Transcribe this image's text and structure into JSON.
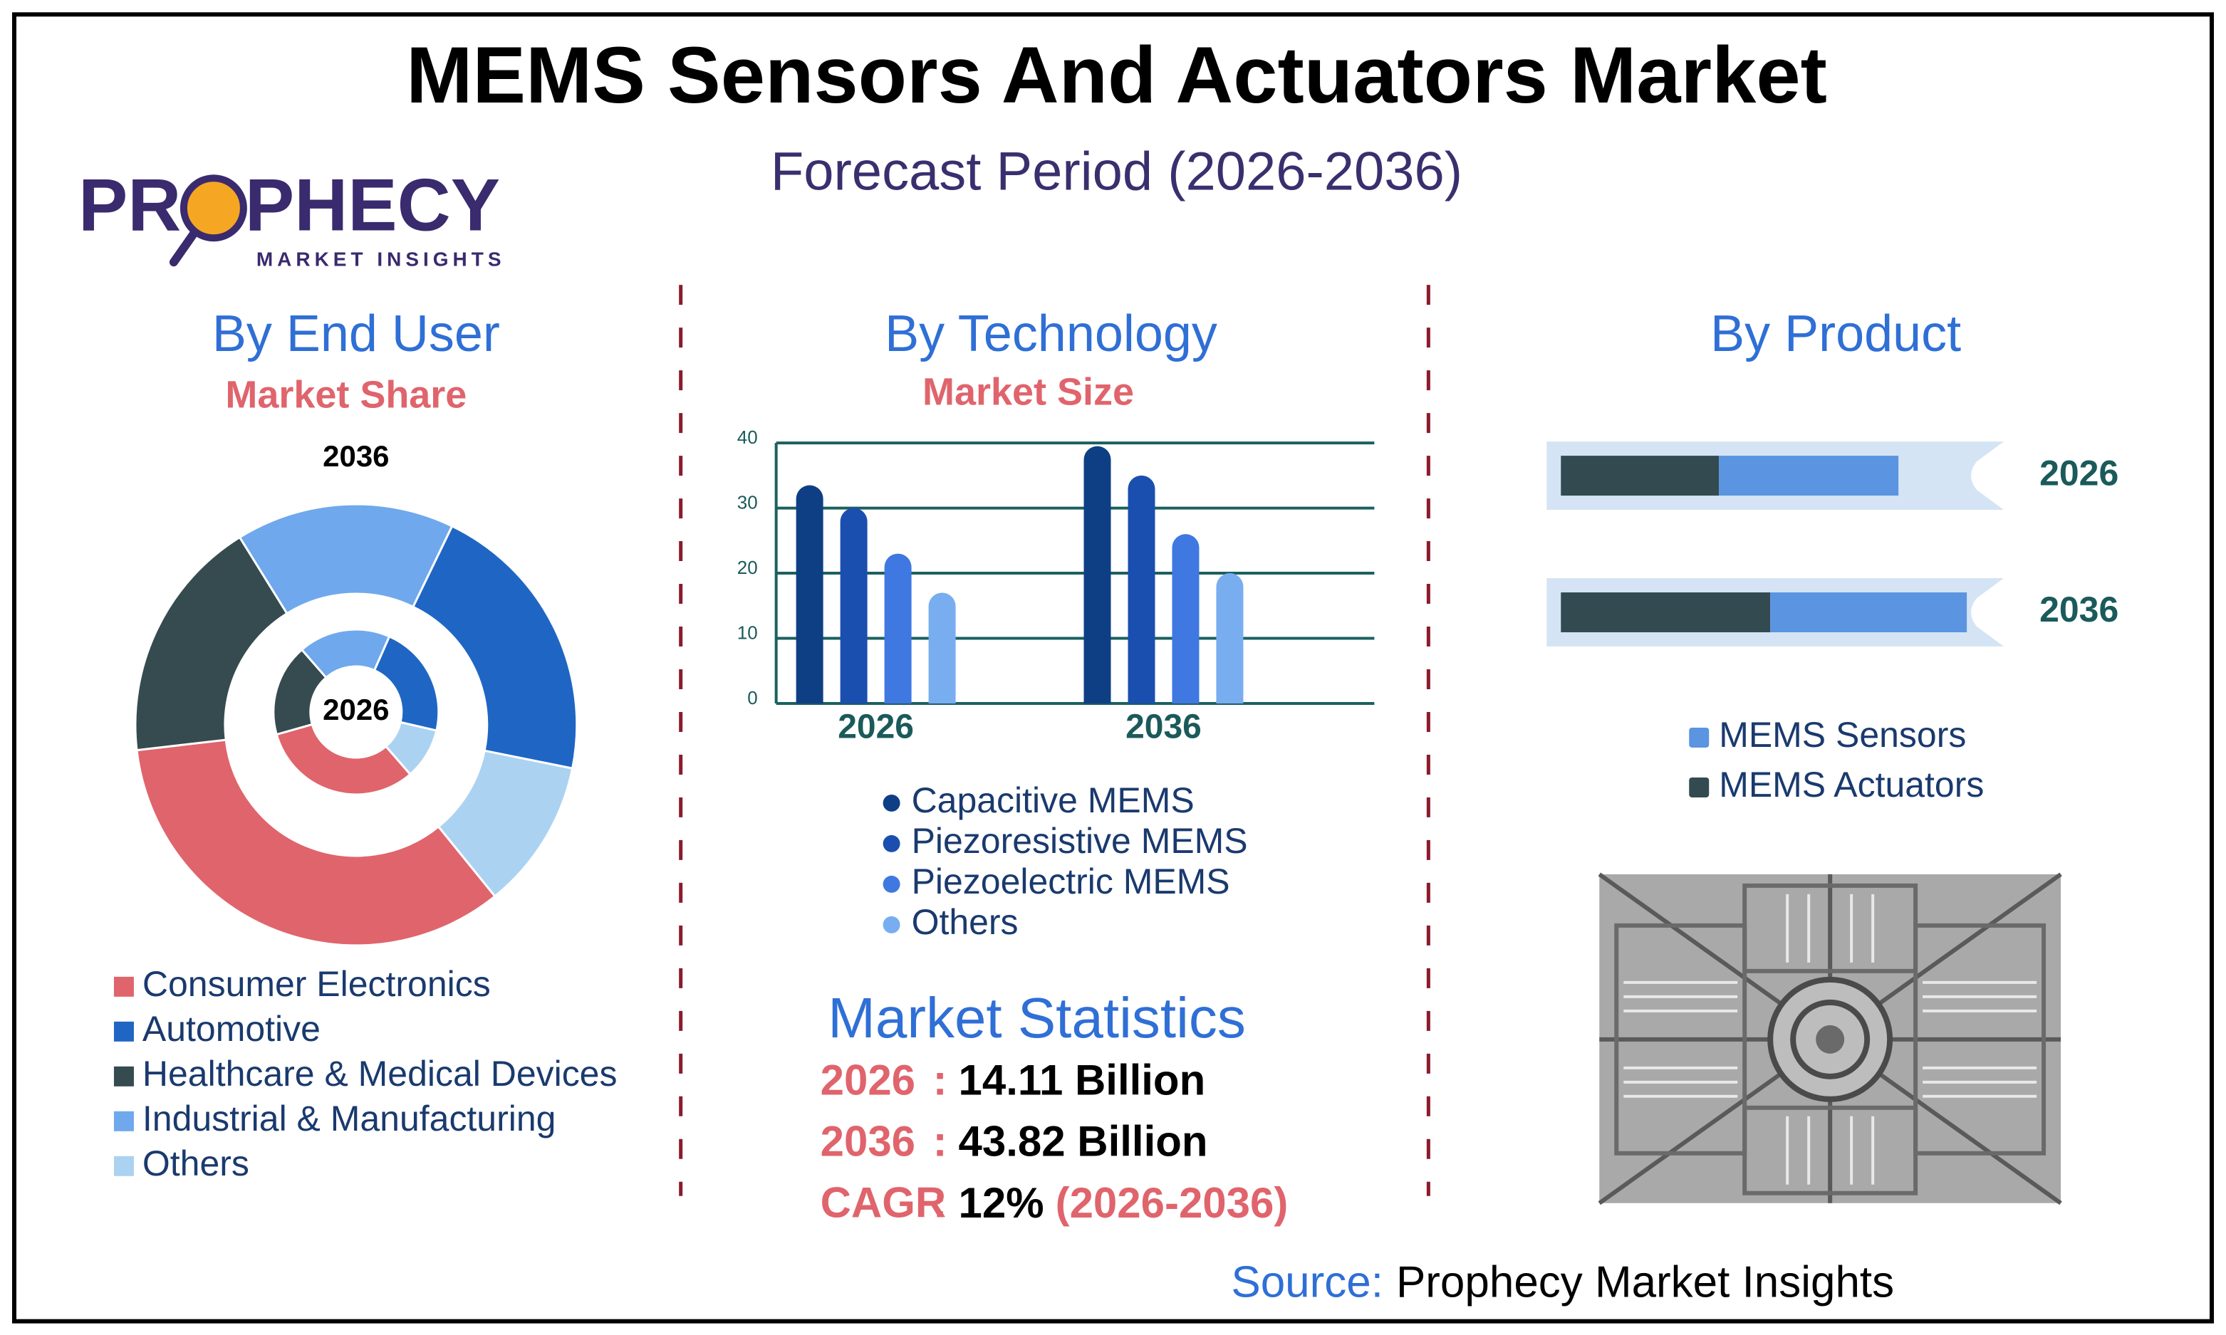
{
  "header": {
    "title": "MEMS Sensors And Actuators Market",
    "subtitle": "Forecast Period (2026-2036)"
  },
  "logo": {
    "name_start": "PR",
    "name_end": "PHECY",
    "tagline": "MARKET INSIGHTS"
  },
  "chart_data": [
    {
      "type": "donut",
      "title": "By End User",
      "subtitle": "Market Share",
      "categories": [
        "Consumer Electronics",
        "Automotive",
        "Healthcare & Medical Devices",
        "Industrial & Manufacturing",
        "Others"
      ],
      "colors": [
        "#e0646c",
        "#1f66c4",
        "#354b50",
        "#6fa8ec",
        "#acd2f2"
      ],
      "series": [
        {
          "name": "2026",
          "values": [
            32,
            22,
            18,
            18,
            10
          ]
        },
        {
          "name": "2036",
          "values": [
            34,
            21,
            18,
            16,
            11
          ]
        }
      ]
    },
    {
      "type": "bar",
      "title": "By Technology",
      "subtitle": "Market Size",
      "categories": [
        "2026",
        "2036"
      ],
      "series": [
        {
          "name": "Capacitive MEMS",
          "color": "#0e3f85",
          "values": [
            33.5,
            39.5
          ]
        },
        {
          "name": "Piezoresistive MEMS",
          "color": "#1a4fb0",
          "values": [
            30,
            35
          ]
        },
        {
          "name": "Piezoelectric MEMS",
          "color": "#3f78e0",
          "values": [
            23,
            26
          ]
        },
        {
          "name": "Others",
          "color": "#78aef0",
          "values": [
            17,
            20
          ]
        }
      ],
      "ylim": [
        0,
        40
      ],
      "yticks": [
        0,
        10,
        20,
        30,
        40
      ],
      "grid": true
    },
    {
      "type": "stacked-barh",
      "title": "By Product",
      "categories": [
        "2026",
        "2036"
      ],
      "series": [
        {
          "name": "MEMS Sensors",
          "color": "#5b94e0",
          "values": [
            42,
            46
          ]
        },
        {
          "name": "MEMS Actuators",
          "color": "#334a50",
          "values": [
            37,
            49
          ]
        }
      ],
      "xlim": [
        0,
        100
      ]
    }
  ],
  "statistics": {
    "title": "Market Statistics",
    "separator": ":",
    "rows": [
      {
        "label": "2026",
        "value": "14.11 Billion"
      },
      {
        "label": "2036",
        "value": "43.82 Billion"
      },
      {
        "label": "CAGR",
        "value": "12%",
        "note": "(2026-2036)"
      }
    ]
  },
  "source": {
    "label": "Source:",
    "text": "Prophecy Market Insights"
  }
}
